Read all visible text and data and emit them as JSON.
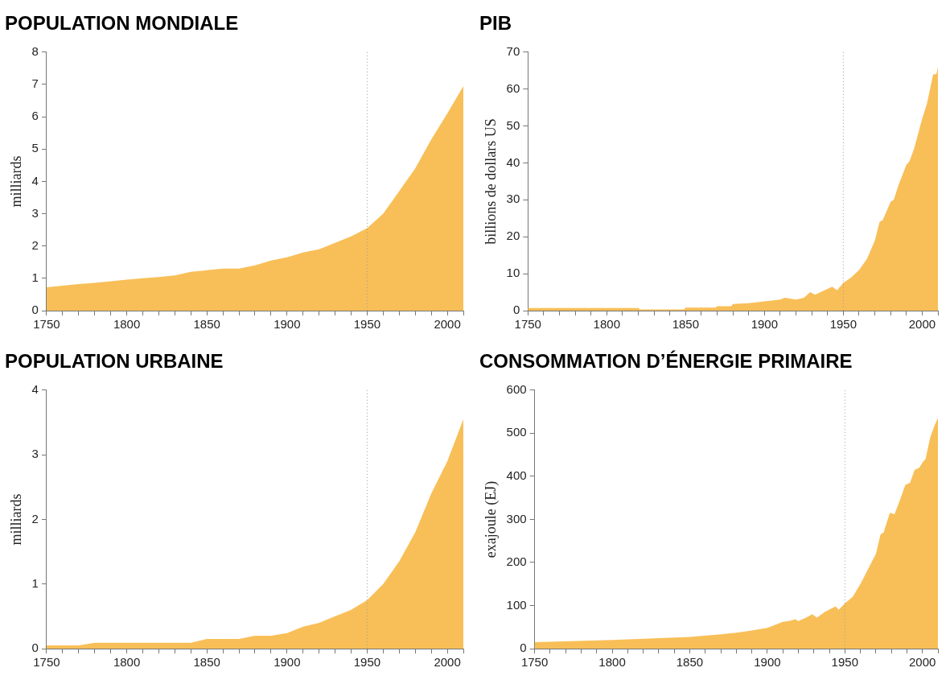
{
  "chart_data": [
    {
      "type": "area",
      "title": "POPULATION MONDIALE",
      "ylabel": "milliards",
      "color": "#f8bf58",
      "grid": false,
      "legend": false,
      "x": [
        1750,
        1760,
        1770,
        1780,
        1790,
        1800,
        1810,
        1820,
        1830,
        1840,
        1850,
        1860,
        1870,
        1880,
        1890,
        1900,
        1910,
        1920,
        1930,
        1940,
        1950,
        1960,
        1970,
        1980,
        1990,
        2000,
        2010
      ],
      "values": [
        0.72,
        0.77,
        0.82,
        0.86,
        0.91,
        0.96,
        1.0,
        1.04,
        1.09,
        1.2,
        1.25,
        1.3,
        1.3,
        1.4,
        1.55,
        1.65,
        1.8,
        1.9,
        2.1,
        2.3,
        2.55,
        3.0,
        3.7,
        4.4,
        5.3,
        6.1,
        6.95
      ],
      "xlim": [
        1750,
        2010
      ],
      "xticks": [
        1750,
        {
          "value": 1760,
          "label": null
        },
        {
          "value": 1770,
          "label": null
        },
        {
          "value": 1780,
          "label": null
        },
        {
          "value": 1790,
          "label": null
        },
        1800,
        {
          "value": 1810,
          "label": null
        },
        {
          "value": 1820,
          "label": null
        },
        {
          "value": 1830,
          "label": null
        },
        {
          "value": 1840,
          "label": null
        },
        1850,
        {
          "value": 1860,
          "label": null
        },
        {
          "value": 1870,
          "label": null
        },
        {
          "value": 1880,
          "label": null
        },
        {
          "value": 1890,
          "label": null
        },
        1900,
        {
          "value": 1910,
          "label": null
        },
        {
          "value": 1920,
          "label": null
        },
        {
          "value": 1930,
          "label": null
        },
        {
          "value": 1940,
          "label": null
        },
        1950,
        {
          "value": 1960,
          "label": null
        },
        {
          "value": 1970,
          "label": null
        },
        {
          "value": 1980,
          "label": null
        },
        {
          "value": 1990,
          "label": null
        },
        2000,
        {
          "value": 2010,
          "label": null
        }
      ],
      "ylim": [
        0,
        8
      ],
      "yticks": [
        0,
        1,
        2,
        3,
        4,
        5,
        6,
        7,
        8
      ],
      "ref_lines": [
        {
          "axis": "x",
          "value": 1950,
          "color": "#999999",
          "line_style": "dotted"
        }
      ]
    },
    {
      "type": "area",
      "title": "PIB",
      "ylabel": "billions de dollars US",
      "color": "#f8bf58",
      "grid": false,
      "legend": false,
      "x": [
        1750,
        1820,
        1821,
        1849,
        1850,
        1869,
        1870,
        1879,
        1880,
        1890,
        1900,
        1910,
        1913,
        1920,
        1925,
        1929,
        1932,
        1938,
        1943,
        1946,
        1950,
        1955,
        1960,
        1965,
        1970,
        1973,
        1975,
        1980,
        1982,
        1985,
        1990,
        1992,
        1995,
        2000,
        2003,
        2007,
        2009,
        2010
      ],
      "values": [
        0.7,
        0.7,
        0.3,
        0.3,
        0.8,
        0.8,
        1.2,
        1.2,
        1.8,
        2.0,
        2.5,
        3.0,
        3.5,
        3.0,
        3.5,
        5.0,
        4.3,
        5.5,
        6.5,
        5.5,
        7.5,
        9,
        11,
        14,
        19,
        24,
        24.5,
        29.5,
        30,
        34,
        39.5,
        40.5,
        44,
        52,
        56,
        64,
        64,
        66
      ],
      "xlim": [
        1750,
        2010
      ],
      "xticks": [
        1750,
        {
          "value": 1760,
          "label": null
        },
        {
          "value": 1770,
          "label": null
        },
        {
          "value": 1780,
          "label": null
        },
        {
          "value": 1790,
          "label": null
        },
        1800,
        {
          "value": 1810,
          "label": null
        },
        {
          "value": 1820,
          "label": null
        },
        {
          "value": 1830,
          "label": null
        },
        {
          "value": 1840,
          "label": null
        },
        1850,
        {
          "value": 1860,
          "label": null
        },
        {
          "value": 1870,
          "label": null
        },
        {
          "value": 1880,
          "label": null
        },
        {
          "value": 1890,
          "label": null
        },
        1900,
        {
          "value": 1910,
          "label": null
        },
        {
          "value": 1920,
          "label": null
        },
        {
          "value": 1930,
          "label": null
        },
        {
          "value": 1940,
          "label": null
        },
        1950,
        {
          "value": 1960,
          "label": null
        },
        {
          "value": 1970,
          "label": null
        },
        {
          "value": 1980,
          "label": null
        },
        {
          "value": 1990,
          "label": null
        },
        2000,
        {
          "value": 2010,
          "label": null
        }
      ],
      "ylim": [
        0,
        70
      ],
      "yticks": [
        0,
        10,
        20,
        30,
        40,
        50,
        60,
        70
      ],
      "ref_lines": [
        {
          "axis": "x",
          "value": 1950,
          "color": "#999999",
          "line_style": "dotted"
        }
      ]
    },
    {
      "type": "area",
      "title": "POPULATION URBAINE",
      "ylabel": "milliards",
      "color": "#f8bf58",
      "grid": false,
      "legend": false,
      "x": [
        1750,
        1770,
        1780,
        1840,
        1850,
        1870,
        1880,
        1890,
        1900,
        1910,
        1920,
        1930,
        1940,
        1950,
        1960,
        1970,
        1980,
        1990,
        2000,
        2010
      ],
      "values": [
        0.05,
        0.05,
        0.09,
        0.09,
        0.15,
        0.15,
        0.2,
        0.2,
        0.24,
        0.34,
        0.4,
        0.5,
        0.6,
        0.75,
        1.0,
        1.35,
        1.8,
        2.4,
        2.9,
        3.55
      ],
      "xlim": [
        1750,
        2010
      ],
      "xticks": [
        1750,
        {
          "value": 1760,
          "label": null
        },
        {
          "value": 1770,
          "label": null
        },
        {
          "value": 1780,
          "label": null
        },
        {
          "value": 1790,
          "label": null
        },
        1800,
        {
          "value": 1810,
          "label": null
        },
        {
          "value": 1820,
          "label": null
        },
        {
          "value": 1830,
          "label": null
        },
        {
          "value": 1840,
          "label": null
        },
        1850,
        {
          "value": 1860,
          "label": null
        },
        {
          "value": 1870,
          "label": null
        },
        {
          "value": 1880,
          "label": null
        },
        {
          "value": 1890,
          "label": null
        },
        1900,
        {
          "value": 1910,
          "label": null
        },
        {
          "value": 1920,
          "label": null
        },
        {
          "value": 1930,
          "label": null
        },
        {
          "value": 1940,
          "label": null
        },
        1950,
        {
          "value": 1960,
          "label": null
        },
        {
          "value": 1970,
          "label": null
        },
        {
          "value": 1980,
          "label": null
        },
        {
          "value": 1990,
          "label": null
        },
        2000,
        {
          "value": 2010,
          "label": null
        }
      ],
      "ylim": [
        0,
        4
      ],
      "yticks": [
        0,
        1,
        2,
        3,
        4
      ],
      "ref_lines": [
        {
          "axis": "x",
          "value": 1950,
          "color": "#999999",
          "line_style": "dotted"
        }
      ]
    },
    {
      "type": "area",
      "title": "CONSOMMATION D’ÉNERGIE PRIMAIRE",
      "ylabel": "exajoule (EJ)",
      "color": "#f8bf58",
      "grid": false,
      "legend": false,
      "x": [
        1750,
        1800,
        1850,
        1870,
        1880,
        1890,
        1900,
        1910,
        1915,
        1918,
        1920,
        1925,
        1929,
        1932,
        1937,
        1944,
        1946,
        1950,
        1955,
        1960,
        1965,
        1970,
        1973,
        1975,
        1979,
        1982,
        1985,
        1989,
        1992,
        1995,
        1998,
        2000,
        2002,
        2005,
        2008,
        2010
      ],
      "values": [
        15,
        20,
        27,
        33,
        37,
        42,
        48,
        62,
        65,
        68,
        64,
        72,
        80,
        72,
        85,
        98,
        90,
        105,
        120,
        150,
        185,
        220,
        265,
        270,
        315,
        312,
        340,
        380,
        385,
        415,
        420,
        432,
        440,
        490,
        520,
        535
      ],
      "xlim": [
        1750,
        2010
      ],
      "xticks": [
        1750,
        {
          "value": 1760,
          "label": null
        },
        {
          "value": 1770,
          "label": null
        },
        {
          "value": 1780,
          "label": null
        },
        {
          "value": 1790,
          "label": null
        },
        1800,
        {
          "value": 1810,
          "label": null
        },
        {
          "value": 1820,
          "label": null
        },
        {
          "value": 1830,
          "label": null
        },
        {
          "value": 1840,
          "label": null
        },
        1850,
        {
          "value": 1860,
          "label": null
        },
        {
          "value": 1870,
          "label": null
        },
        {
          "value": 1880,
          "label": null
        },
        {
          "value": 1890,
          "label": null
        },
        1900,
        {
          "value": 1910,
          "label": null
        },
        {
          "value": 1920,
          "label": null
        },
        {
          "value": 1930,
          "label": null
        },
        {
          "value": 1940,
          "label": null
        },
        1950,
        {
          "value": 1960,
          "label": null
        },
        {
          "value": 1970,
          "label": null
        },
        {
          "value": 1980,
          "label": null
        },
        {
          "value": 1990,
          "label": null
        },
        2000,
        {
          "value": 2010,
          "label": null
        }
      ],
      "ylim": [
        0,
        600
      ],
      "yticks": [
        0,
        100,
        200,
        300,
        400,
        500,
        600
      ],
      "ref_lines": [
        {
          "axis": "x",
          "value": 1950,
          "color": "#999999",
          "line_style": "dotted"
        }
      ]
    }
  ]
}
